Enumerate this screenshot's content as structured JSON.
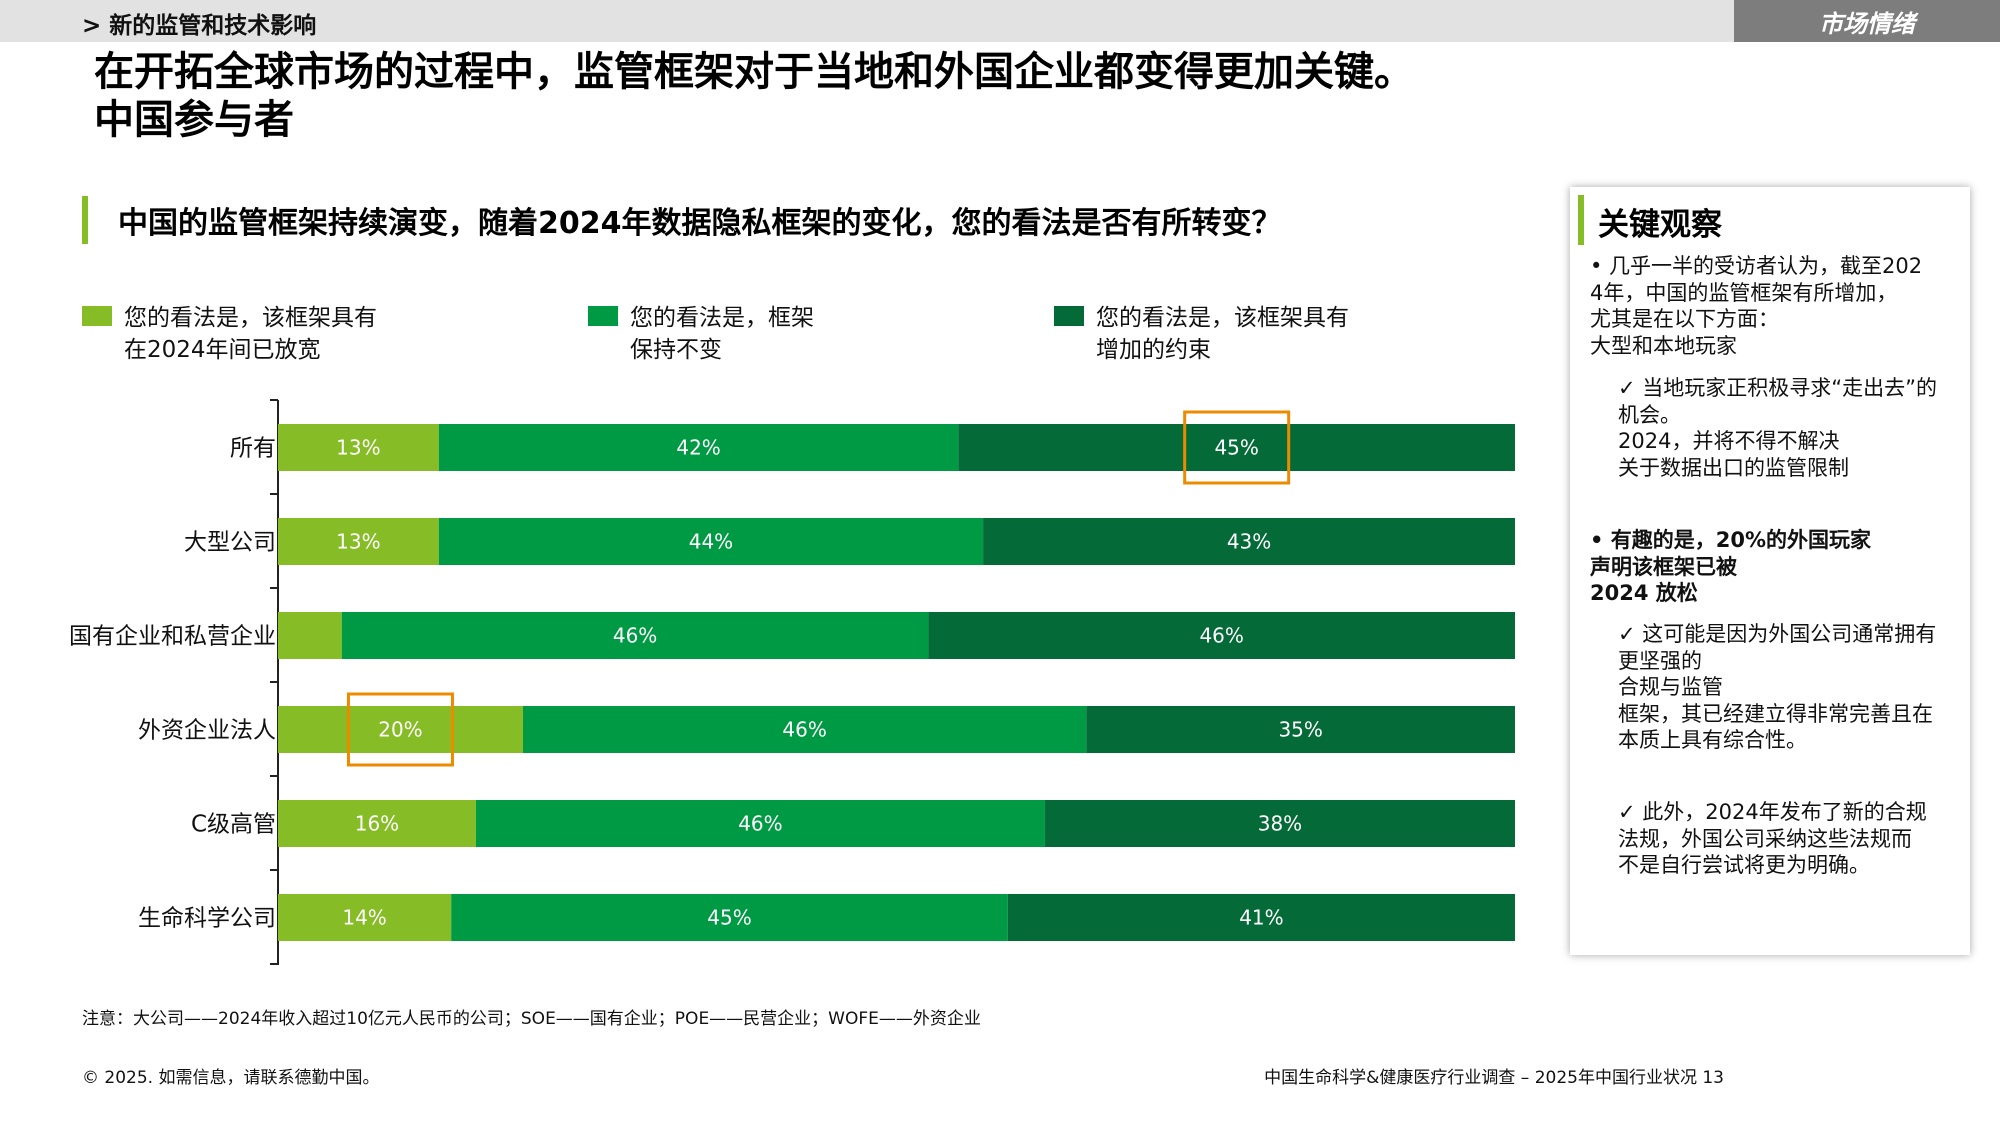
{
  "header": {
    "section_label": "> 新的监管和技术影响",
    "market_tag": "市场情绪"
  },
  "title": {
    "line1": "在开拓全球市场的过程中，监管框架对于当地和外国企业都变得更加关键。",
    "line2": "中国参与者"
  },
  "question": "中国的监管框架持续演变，随着2024年数据隐私框架的变化，您的看法是否有所转变？",
  "legend": [
    {
      "line1": "您的看法是，该框架具有",
      "line2": "在2024年间已放宽"
    },
    {
      "line1": "您的看法是，框架",
      "line2": "保持不变"
    },
    {
      "line1": "您的看法是，该框架具有",
      "line2": "增加的约束"
    }
  ],
  "colors": {
    "relaxed": "#86bc25",
    "unchanged": "#009a44",
    "increased": "#046a38",
    "highlight": "#ed8b00",
    "accent": "#86bc25",
    "header_bar": "#e2e2e2",
    "market_tag_bg": "#7d7d7d"
  },
  "chart_data": {
    "type": "bar",
    "orientation": "horizontal",
    "stacked": true,
    "normalized": true,
    "categories": [
      "所有",
      "大型公司",
      "国有企业和私营企业",
      "外资企业法人",
      "C级高管",
      "生命科学公司"
    ],
    "series": [
      {
        "name": "您的看法是，该框架具有在2024年间已放宽",
        "values": [
          13,
          13,
          5,
          20,
          16,
          14
        ],
        "labels": [
          "13%",
          "13%",
          "",
          "20%",
          "16%",
          "14%"
        ]
      },
      {
        "name": "您的看法是，框架保持不变",
        "values": [
          42,
          44,
          46,
          46,
          46,
          45
        ],
        "labels": [
          "42%",
          "44%",
          "46%",
          "46%",
          "46%",
          "45%"
        ]
      },
      {
        "name": "您的看法是，该框架具有增加的约束",
        "values": [
          45,
          43,
          46,
          35,
          38,
          41
        ],
        "labels": [
          "45%",
          "43%",
          "46%",
          "35%",
          "38%",
          "41%"
        ]
      }
    ],
    "highlights": [
      {
        "category": "所有",
        "series": 2
      },
      {
        "category": "外资企业法人",
        "series": 0
      }
    ],
    "grid": false,
    "legend_position": "top"
  },
  "note": "注意：大公司——2024年收入超过10亿元人民币的公司；SOE——国有企业；POE——民营企业；WOFE——外资企业",
  "footer": {
    "copyright": "© 2025. 如需信息，请联系德勤中国。",
    "source": "中国生命科学&健康医疗行业调查 – 2025年中国行业状况 13"
  },
  "insights": {
    "title": "关键观察",
    "block1": [
      "• 几乎一半的受访者认为，截至202",
      "4年，中国的监管框架有所增加，",
      "尤其是在以下方面：",
      "大型和本地玩家"
    ],
    "check1": [
      "✓ 当地玩家正积极寻求“走出去”的",
      "机会。",
      "2024，并将不得不解决",
      "关于数据出口的监管限制"
    ],
    "block2": [
      "• 有趣的是，20%的外国玩家",
      "声明该框架已被",
      "2024 放松"
    ],
    "check2": [
      "✓ 这可能是因为外国公司通常拥有",
      "更坚强的",
      "合规与监管",
      "框架，其已经建立得非常完善且在",
      "本质上具有综合性。"
    ],
    "check3": [
      "✓ 此外，2024年发布了新的合规",
      "法规，外国公司采纳这些法规而",
      "不是自行尝试将更为明确。"
    ]
  }
}
